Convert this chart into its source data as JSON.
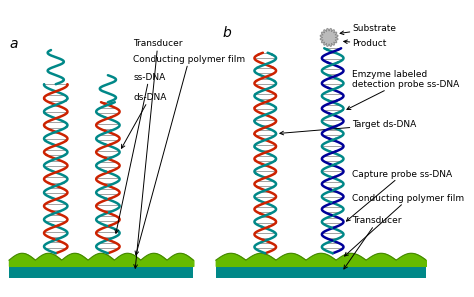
{
  "bg_color": "#ffffff",
  "label_a": "a",
  "label_b": "b",
  "colors": {
    "red": "#cc2200",
    "teal": "#008888",
    "blue": "#000099",
    "green_fill": "#66bb00",
    "green_dark": "#448800",
    "transducer": "#008888",
    "gray_star": "#bbbbbb"
  },
  "labels_a": {
    "ds_DNA": "ds-DNA",
    "ss_DNA": "ss-DNA",
    "polymer_film": "Conducting polymer film",
    "transducer": "Transducer"
  },
  "labels_b": {
    "substrate": "Substrate",
    "product": "Product",
    "enzyme_probe": "Emzyme labeled\ndetection probe ss-DNA",
    "target": "Target ds-DNA",
    "capture_probe": "Capture probe ss-DNA",
    "polymer_film": "Conducting polymer film",
    "transducer": "Transducer"
  }
}
